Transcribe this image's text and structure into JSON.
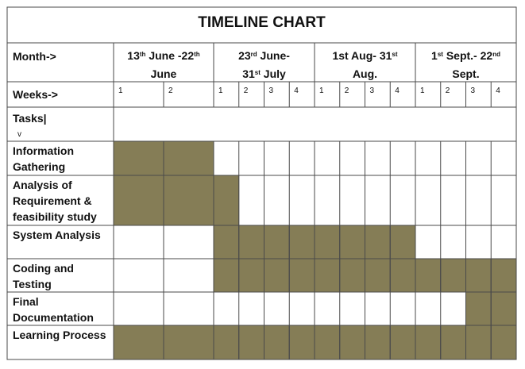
{
  "chart_data": {
    "type": "table",
    "title": "TIMELINE CHART",
    "month_header_label": "Month->",
    "weeks_header_label": "Weeks->",
    "tasks_header_label": "Tasks|",
    "tasks_header_arrow": "v",
    "months": [
      {
        "line1": [
          {
            "t": "13"
          },
          {
            "t": "th",
            "sup": true
          },
          {
            "t": " June -22"
          },
          {
            "t": "th",
            "sup": true
          }
        ],
        "line2": "June",
        "weeks": [
          "1",
          "2"
        ]
      },
      {
        "line1": [
          {
            "t": "23"
          },
          {
            "t": "rd",
            "sup": true
          },
          {
            "t": " June-"
          }
        ],
        "line2": [
          {
            "t": "31"
          },
          {
            "t": "st",
            "sup": true
          },
          {
            "t": " July"
          }
        ],
        "weeks": [
          "1",
          "2",
          "3",
          "4"
        ]
      },
      {
        "line1": [
          {
            "t": "1st Aug-  31"
          },
          {
            "t": "st",
            "sup": true
          }
        ],
        "line2": "Aug.",
        "weeks": [
          "1",
          "2",
          "3",
          "4"
        ]
      },
      {
        "line1": [
          {
            "t": "1"
          },
          {
            "t": "st",
            "sup": true
          },
          {
            "t": " Sept.-  22"
          },
          {
            "t": "nd",
            "sup": true
          }
        ],
        "line2": "Sept.",
        "weeks": [
          "1",
          "2",
          "3",
          "4"
        ]
      }
    ],
    "tasks": [
      {
        "name": [
          "Information",
          "Gathering"
        ],
        "filled": [
          "1-1",
          "1-2"
        ]
      },
      {
        "name": [
          "Analysis of",
          "Requirement  &",
          "feasibility study"
        ],
        "filled": [
          "1-1",
          "1-2",
          "2-1"
        ]
      },
      {
        "name": [
          "System Analysis"
        ],
        "filled": [
          "2-1",
          "2-2",
          "2-3",
          "2-4",
          "3-1",
          "3-2",
          "3-3",
          "3-4"
        ]
      },
      {
        "name": [
          "Coding and",
          "Testing"
        ],
        "filled": [
          "2-1",
          "2-2",
          "2-3",
          "2-4",
          "3-1",
          "3-2",
          "3-3",
          "3-4",
          "4-1",
          "4-2",
          "4-3",
          "4-4"
        ]
      },
      {
        "name": [
          "Final",
          "Documentation"
        ],
        "filled": [
          "4-3",
          "4-4"
        ]
      },
      {
        "name": [
          "Learning Process"
        ],
        "filled": [
          "1-1",
          "1-2",
          "2-1",
          "2-2",
          "2-3",
          "2-4",
          "3-1",
          "3-2",
          "3-3",
          "3-4",
          "4-1",
          "4-2",
          "4-3",
          "4-4"
        ]
      }
    ],
    "fill_color": "#857d56",
    "grid_color": "#4a4a4a"
  }
}
